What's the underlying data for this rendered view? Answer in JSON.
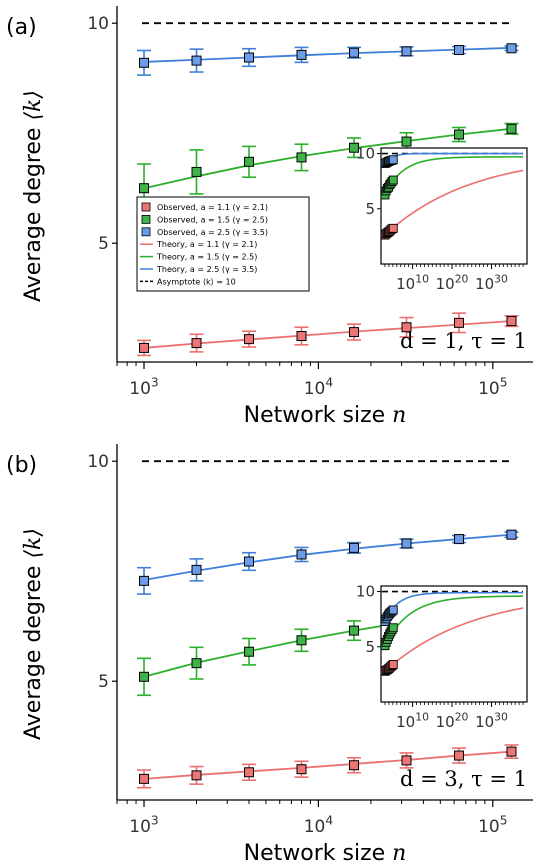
{
  "chart_data": [
    {
      "panel_label": "(a)",
      "type": "scatter",
      "xscale": "log",
      "xlabel": "Network size",
      "xlabel_var": "n",
      "ylabel": "Average degree",
      "ylabel_var": "⟨k⟩",
      "xlim": [
        700,
        170000
      ],
      "ylim": [
        2.3,
        10.3
      ],
      "yticks": [
        {
          "value": 5,
          "label": "5"
        },
        {
          "value": 10,
          "label": "10"
        }
      ],
      "xticks": [
        {
          "value": 1000,
          "base": "10",
          "exp": "3"
        },
        {
          "value": 10000,
          "base": "10",
          "exp": "4"
        },
        {
          "value": 100000,
          "base": "10",
          "exp": "5"
        }
      ],
      "annotation": "d = 1, τ = 1",
      "asymptote": 10,
      "x": [
        1000,
        2000,
        4000,
        8000,
        16000,
        32000,
        64000,
        128000
      ],
      "series": [
        {
          "color": "#3f7fd9",
          "fill": "#6c9ce8",
          "values": [
            9.1,
            9.15,
            9.22,
            9.28,
            9.33,
            9.36,
            9.39,
            9.43
          ],
          "err": [
            0.28,
            0.26,
            0.2,
            0.17,
            0.12,
            0.1,
            0.08,
            0.05
          ],
          "theory": [
            9.12,
            9.17,
            9.22,
            9.27,
            9.32,
            9.36,
            9.4,
            9.44
          ]
        },
        {
          "color": "#2bb02b",
          "fill": "#3fb24a",
          "values": [
            6.25,
            6.62,
            6.85,
            6.95,
            7.17,
            7.31,
            7.47,
            7.6
          ],
          "err": [
            0.55,
            0.5,
            0.35,
            0.3,
            0.22,
            0.2,
            0.16,
            0.12
          ],
          "theory": [
            6.25,
            6.52,
            6.77,
            6.98,
            7.16,
            7.32,
            7.47,
            7.6
          ]
        },
        {
          "color": "#ec6f6f",
          "fill": "#ec7676",
          "values": [
            2.62,
            2.73,
            2.82,
            2.89,
            2.98,
            3.09,
            3.19,
            3.23
          ],
          "err": [
            0.17,
            0.2,
            0.18,
            0.2,
            0.18,
            0.22,
            0.22,
            0.12
          ],
          "theory": [
            2.62,
            2.72,
            2.81,
            2.9,
            2.99,
            3.07,
            3.15,
            3.23
          ]
        }
      ],
      "legend": {
        "placement": "center-left",
        "entries": [
          {
            "kind": "marker",
            "color": "#ec7676",
            "label": "Observed, a = 1.1 (γ = 2.1)"
          },
          {
            "kind": "marker",
            "color": "#3fb24a",
            "label": "Observed, a = 1.5 (γ = 2.5)"
          },
          {
            "kind": "marker",
            "color": "#6c9ce8",
            "label": "Observed, a = 2.5 (γ = 3.5)"
          },
          {
            "kind": "line",
            "color": "#ec6f6f",
            "label": "Theory, a = 1.1 (γ = 2.1)"
          },
          {
            "kind": "line",
            "color": "#2bb02b",
            "label": "Theory, a = 1.5 (γ = 2.5)"
          },
          {
            "kind": "line",
            "color": "#3f7fd9",
            "label": "Theory, a = 2.5 (γ = 3.5)"
          },
          {
            "kind": "dash",
            "color": "#000000",
            "label": "Asymptote ⟨k⟩ = 10"
          }
        ]
      },
      "inset": {
        "xscale": "log",
        "xlim_exp": [
          2,
          39
        ],
        "ylim": [
          0,
          10.5
        ],
        "yticks": [
          "5",
          "10"
        ],
        "xticks": [
          {
            "exp_value": 10,
            "base": "10",
            "exp": "10"
          },
          {
            "exp_value": 20,
            "base": "10",
            "exp": "20"
          },
          {
            "exp_value": 30,
            "base": "10",
            "exp": "30"
          }
        ],
        "asymptote": 10,
        "curves_high": [
          {
            "color": "#3f7fd9",
            "start": 9.1,
            "end": 10,
            "rate": 0.55
          },
          {
            "color": "#2bb02b",
            "start": 6.25,
            "end": 9.7,
            "rate": 0.22
          },
          {
            "color": "#ec6f6f",
            "start": 2.62,
            "end": 10,
            "rate": 0.045
          }
        ]
      }
    },
    {
      "panel_label": "(b)",
      "type": "scatter",
      "xscale": "log",
      "xlabel": "Network size",
      "xlabel_var": "n",
      "ylabel": "Average degree",
      "ylabel_var": "⟨k⟩",
      "xlim": [
        700,
        170000
      ],
      "ylim": [
        2.3,
        10.3
      ],
      "yticks": [
        {
          "value": 5,
          "label": "5"
        },
        {
          "value": 10,
          "label": "10"
        }
      ],
      "xticks": [
        {
          "value": 1000,
          "base": "10",
          "exp": "3"
        },
        {
          "value": 10000,
          "base": "10",
          "exp": "4"
        },
        {
          "value": 100000,
          "base": "10",
          "exp": "5"
        }
      ],
      "annotation": "d = 3, τ = 1",
      "asymptote": 10,
      "x": [
        1000,
        2000,
        4000,
        8000,
        16000,
        32000,
        64000,
        128000
      ],
      "series": [
        {
          "color": "#3f7fd9",
          "fill": "#6c9ce8",
          "values": [
            7.28,
            7.53,
            7.72,
            7.88,
            8.03,
            8.13,
            8.23,
            8.33
          ],
          "err": [
            0.3,
            0.25,
            0.2,
            0.16,
            0.12,
            0.1,
            0.08,
            0.06
          ],
          "theory": [
            7.3,
            7.51,
            7.7,
            7.87,
            8.01,
            8.13,
            8.23,
            8.33
          ]
        },
        {
          "color": "#2bb02b",
          "fill": "#3fb24a",
          "values": [
            5.1,
            5.41,
            5.67,
            5.93,
            6.15,
            6.35,
            6.55,
            6.72
          ],
          "err": [
            0.42,
            0.36,
            0.3,
            0.25,
            0.22,
            0.18,
            0.15,
            0.1
          ],
          "theory": [
            5.1,
            5.42,
            5.68,
            5.93,
            6.15,
            6.35,
            6.54,
            6.72
          ]
        },
        {
          "color": "#ec6f6f",
          "fill": "#ec7676",
          "values": [
            2.78,
            2.86,
            2.93,
            3.0,
            3.09,
            3.2,
            3.31,
            3.4
          ],
          "err": [
            0.2,
            0.2,
            0.18,
            0.18,
            0.17,
            0.17,
            0.17,
            0.15
          ],
          "theory": [
            2.78,
            2.87,
            2.95,
            3.03,
            3.12,
            3.21,
            3.31,
            3.4
          ]
        }
      ],
      "inset": {
        "xscale": "log",
        "xlim_exp": [
          2,
          39
        ],
        "ylim": [
          0,
          10.5
        ],
        "yticks": [
          "5",
          "10"
        ],
        "xticks": [
          {
            "exp_value": 10,
            "base": "10",
            "exp": "10"
          },
          {
            "exp_value": 20,
            "base": "10",
            "exp": "20"
          },
          {
            "exp_value": 30,
            "base": "10",
            "exp": "30"
          }
        ],
        "asymptote": 10,
        "curves_high": [
          {
            "color": "#3f7fd9",
            "start": 7.3,
            "end": 9.9,
            "rate": 0.3
          },
          {
            "color": "#2bb02b",
            "start": 5.1,
            "end": 9.6,
            "rate": 0.16
          },
          {
            "color": "#ec6f6f",
            "start": 2.78,
            "end": 10,
            "rate": 0.045
          }
        ]
      }
    }
  ]
}
